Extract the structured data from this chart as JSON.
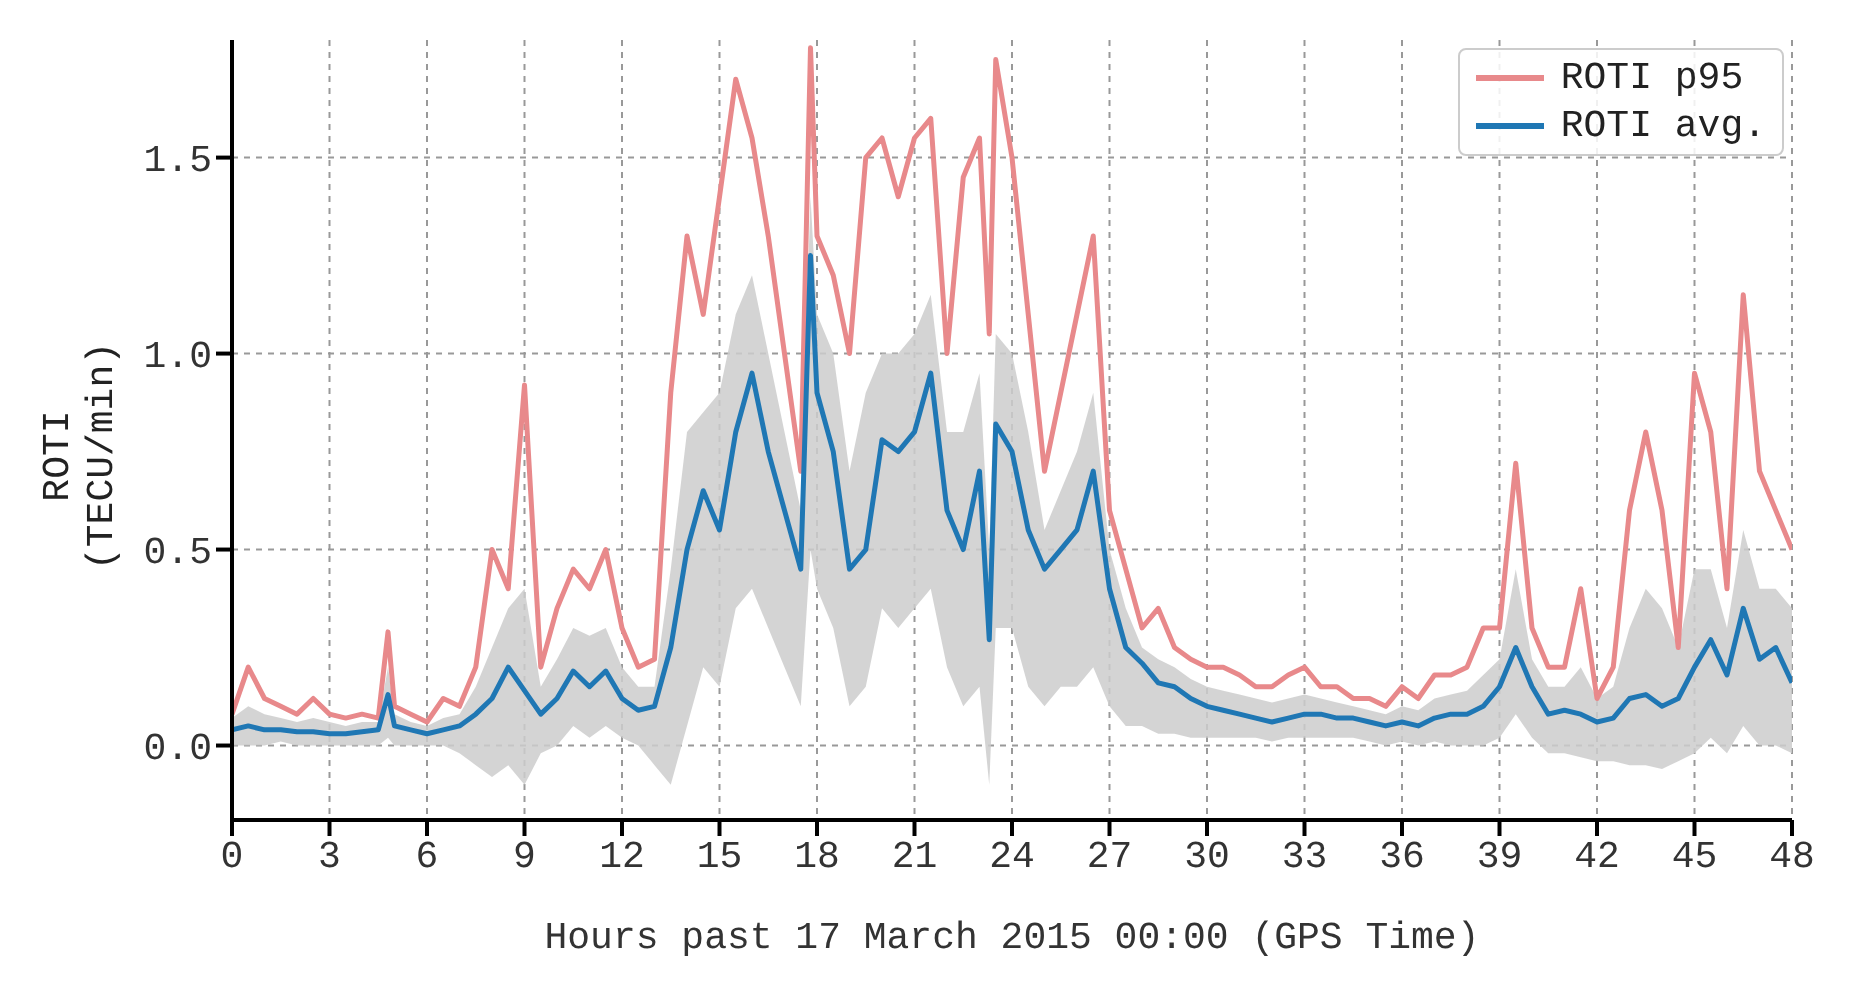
{
  "chart_data": {
    "type": "line",
    "xlabel": "Hours past 17 March 2015 00:00 (GPS Time)",
    "ylabel": "ROTI\n(TECU/min)",
    "x": [
      0,
      0.5,
      1,
      1.5,
      2,
      2.5,
      3,
      3.5,
      4,
      4.5,
      4.8,
      5,
      5.5,
      6,
      6.5,
      7,
      7.5,
      8,
      8.5,
      9,
      9.5,
      10,
      10.5,
      11,
      11.5,
      12,
      12.5,
      13,
      13.5,
      14,
      14.5,
      15,
      15.5,
      16,
      16.5,
      17,
      17.5,
      17.8,
      18,
      18.5,
      19,
      19.5,
      20,
      20.5,
      21,
      21.5,
      22,
      22.5,
      23,
      23.3,
      23.5,
      24,
      24.5,
      25,
      25.5,
      26,
      26.5,
      27,
      27.5,
      28,
      28.5,
      29,
      29.5,
      30,
      30.5,
      31,
      31.5,
      32,
      32.5,
      33,
      33.5,
      34,
      34.5,
      35,
      35.5,
      36,
      36.5,
      37,
      37.5,
      38,
      38.5,
      39,
      39.5,
      40,
      40.5,
      41,
      41.5,
      42,
      42.5,
      43,
      43.5,
      44,
      44.5,
      45,
      45.5,
      46,
      46.5,
      47,
      47.5,
      48
    ],
    "series": [
      {
        "name": "ROTI p95",
        "color": "#e8898b",
        "values": [
          0.08,
          0.2,
          0.12,
          0.1,
          0.08,
          0.12,
          0.08,
          0.07,
          0.08,
          0.07,
          0.29,
          0.1,
          0.08,
          0.06,
          0.12,
          0.1,
          0.2,
          0.5,
          0.4,
          0.92,
          0.2,
          0.35,
          0.45,
          0.4,
          0.5,
          0.3,
          0.2,
          0.22,
          0.9,
          1.3,
          1.1,
          1.4,
          1.7,
          1.55,
          1.3,
          1.0,
          0.7,
          1.78,
          1.3,
          1.2,
          1.0,
          1.5,
          1.55,
          1.4,
          1.55,
          1.6,
          1.0,
          1.45,
          1.55,
          1.05,
          1.75,
          1.5,
          1.1,
          0.7,
          0.9,
          1.1,
          1.3,
          0.6,
          0.45,
          0.3,
          0.35,
          0.25,
          0.22,
          0.2,
          0.2,
          0.18,
          0.15,
          0.15,
          0.18,
          0.2,
          0.15,
          0.15,
          0.12,
          0.12,
          0.1,
          0.15,
          0.12,
          0.18,
          0.18,
          0.2,
          0.3,
          0.3,
          0.72,
          0.3,
          0.2,
          0.2,
          0.4,
          0.12,
          0.2,
          0.6,
          0.8,
          0.6,
          0.25,
          0.95,
          0.8,
          0.4,
          1.15,
          0.7,
          0.6,
          0.5
        ]
      },
      {
        "name": "ROTI avg.",
        "color": "#1f77b4",
        "values": [
          0.04,
          0.05,
          0.04,
          0.04,
          0.035,
          0.035,
          0.03,
          0.03,
          0.035,
          0.04,
          0.13,
          0.05,
          0.04,
          0.03,
          0.04,
          0.05,
          0.08,
          0.12,
          0.2,
          0.14,
          0.08,
          0.12,
          0.19,
          0.15,
          0.19,
          0.12,
          0.09,
          0.1,
          0.25,
          0.5,
          0.65,
          0.55,
          0.8,
          0.95,
          0.75,
          0.6,
          0.45,
          1.25,
          0.9,
          0.75,
          0.45,
          0.5,
          0.78,
          0.75,
          0.8,
          0.95,
          0.6,
          0.5,
          0.7,
          0.27,
          0.82,
          0.75,
          0.55,
          0.45,
          0.5,
          0.55,
          0.7,
          0.4,
          0.25,
          0.21,
          0.16,
          0.15,
          0.12,
          0.1,
          0.09,
          0.08,
          0.07,
          0.06,
          0.07,
          0.08,
          0.08,
          0.07,
          0.07,
          0.06,
          0.05,
          0.06,
          0.05,
          0.07,
          0.08,
          0.08,
          0.1,
          0.15,
          0.25,
          0.15,
          0.08,
          0.09,
          0.08,
          0.06,
          0.07,
          0.12,
          0.13,
          0.1,
          0.12,
          0.2,
          0.27,
          0.18,
          0.35,
          0.22,
          0.25,
          0.16
        ],
        "lower": [
          0,
          0,
          0,
          0.01,
          0,
          0,
          0,
          0,
          0,
          0,
          0.02,
          0,
          0,
          0,
          0,
          -0.02,
          -0.05,
          -0.08,
          -0.05,
          -0.1,
          -0.02,
          0,
          0.05,
          0.02,
          0.05,
          0.02,
          0,
          -0.05,
          -0.1,
          0.05,
          0.2,
          0.15,
          0.35,
          0.4,
          0.3,
          0.2,
          0.1,
          0.5,
          0.4,
          0.3,
          0.1,
          0.15,
          0.35,
          0.3,
          0.35,
          0.4,
          0.2,
          0.1,
          0.15,
          -0.1,
          0.3,
          0.3,
          0.15,
          0.1,
          0.15,
          0.15,
          0.2,
          0.1,
          0.05,
          0.05,
          0.03,
          0.03,
          0.02,
          0.02,
          0.02,
          0.02,
          0.02,
          0.01,
          0.02,
          0.02,
          0.02,
          0.02,
          0.02,
          0.01,
          0,
          0.01,
          0,
          0.01,
          0,
          0,
          0,
          0.02,
          0.08,
          0.02,
          -0.02,
          -0.02,
          -0.03,
          -0.04,
          -0.04,
          -0.05,
          -0.05,
          -0.06,
          -0.04,
          -0.02,
          0.02,
          -0.02,
          0.05,
          0,
          0,
          -0.02
        ],
        "upper": [
          0.07,
          0.1,
          0.08,
          0.07,
          0.06,
          0.07,
          0.06,
          0.05,
          0.06,
          0.06,
          0.2,
          0.08,
          0.06,
          0.05,
          0.07,
          0.08,
          0.15,
          0.25,
          0.35,
          0.4,
          0.15,
          0.22,
          0.3,
          0.28,
          0.3,
          0.2,
          0.15,
          0.15,
          0.45,
          0.8,
          0.85,
          0.9,
          1.1,
          1.2,
          1.0,
          0.8,
          0.6,
          1.4,
          1.1,
          1.0,
          0.7,
          0.9,
          1.0,
          1.0,
          1.05,
          1.15,
          0.8,
          0.8,
          0.95,
          0.5,
          1.05,
          1.0,
          0.8,
          0.55,
          0.65,
          0.75,
          0.9,
          0.5,
          0.35,
          0.25,
          0.22,
          0.2,
          0.17,
          0.15,
          0.14,
          0.13,
          0.12,
          0.11,
          0.12,
          0.13,
          0.12,
          0.11,
          0.1,
          0.09,
          0.08,
          0.1,
          0.09,
          0.12,
          0.13,
          0.14,
          0.18,
          0.22,
          0.45,
          0.22,
          0.15,
          0.15,
          0.2,
          0.12,
          0.15,
          0.3,
          0.4,
          0.35,
          0.25,
          0.45,
          0.45,
          0.3,
          0.55,
          0.4,
          0.4,
          0.35
        ]
      }
    ],
    "xlim": [
      0,
      48
    ],
    "xticks": [
      0,
      3,
      6,
      9,
      12,
      15,
      18,
      21,
      24,
      27,
      30,
      33,
      36,
      39,
      42,
      45,
      48
    ],
    "ylim": [
      -0.19,
      1.8
    ],
    "yticks": [
      {
        "value": 0,
        "label": "0.0"
      },
      {
        "value": 0.5,
        "label": "0.5"
      },
      {
        "value": 1,
        "label": "1.0"
      },
      {
        "value": 1.5,
        "label": "1.5"
      }
    ],
    "grid": true,
    "legend": "top right"
  }
}
